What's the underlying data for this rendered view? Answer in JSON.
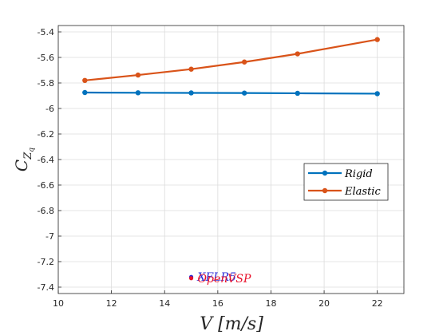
{
  "chart_data": {
    "type": "line",
    "xlabel": "V [m/s]",
    "ylabel": {
      "main": "C",
      "sub": "Z",
      "subsub": "q"
    },
    "xlim": [
      10,
      23
    ],
    "ylim": [
      -7.45,
      -5.35
    ],
    "xticks": [
      10,
      12,
      14,
      16,
      18,
      20,
      22
    ],
    "xtick_labels": [
      "10",
      "12",
      "14",
      "16",
      "18",
      "20",
      "22"
    ],
    "yticks": [
      -5.4,
      -5.6,
      -5.8,
      -6,
      -6.2,
      -6.4,
      -6.6,
      -6.8,
      -7,
      -7.2,
      -7.4
    ],
    "ytick_labels": [
      "-5.4",
      "-5.6",
      "-5.8",
      "-6",
      "-6.2",
      "-6.4",
      "-6.6",
      "-6.8",
      "-7",
      "-7.2",
      "-7.4"
    ],
    "grid": true,
    "legend_position": "right",
    "series": [
      {
        "name": "Rigid",
        "color": "#0072BD",
        "x": [
          11,
          13,
          15,
          17,
          19,
          22
        ],
        "y": [
          -5.875,
          -5.877,
          -5.878,
          -5.879,
          -5.881,
          -5.884
        ]
      },
      {
        "name": "Elastic",
        "color": "#D95319",
        "x": [
          11,
          13,
          15,
          17,
          19,
          22
        ],
        "y": [
          -5.78,
          -5.738,
          -5.692,
          -5.636,
          -5.572,
          -5.46
        ]
      }
    ],
    "annotations": [
      {
        "text": "XFLR5",
        "color": "#2b2bd6",
        "x": 15,
        "y": -7.32
      },
      {
        "text": "OpenVSP",
        "color": "#e8102a",
        "x": 15,
        "y": -7.33
      }
    ]
  }
}
